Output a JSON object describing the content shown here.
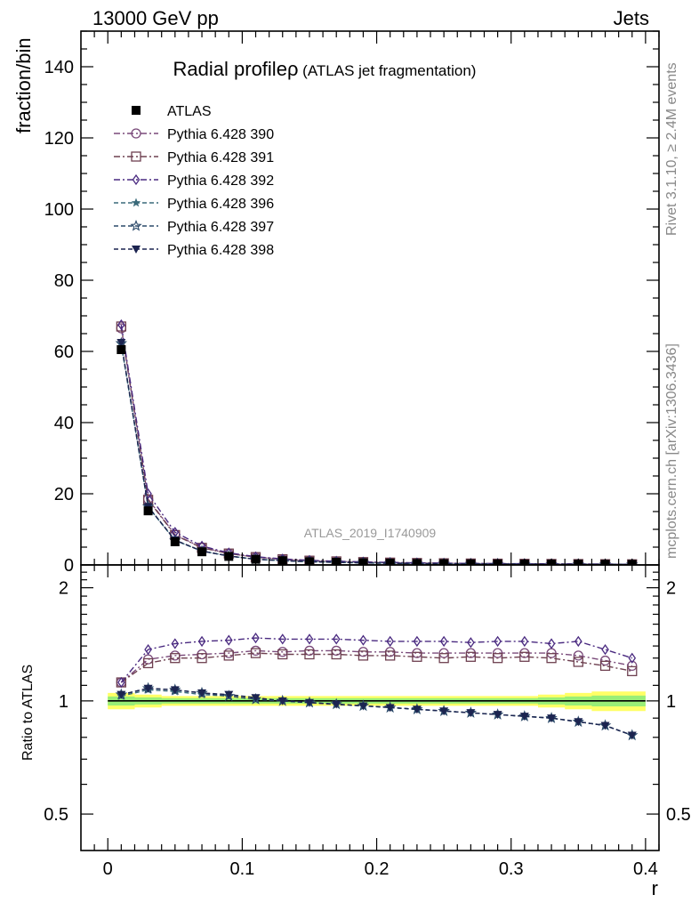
{
  "header": {
    "left": "13000 GeV pp",
    "right": "Jets"
  },
  "plot": {
    "title": "Radial profile",
    "title_symbol": "ρ",
    "title_suffix": " (ATLAS jet fragmentation)",
    "watermark": "ATLAS_2019_I1740909",
    "side_top": "Rivet 3.1.10, ≥ 2.4M events",
    "side_bottom": "mcplots.cern.ch [arXiv:1306.3436]"
  },
  "chart_data": [
    {
      "type": "line",
      "panel": "main",
      "ylabel": "fraction/bin",
      "xlabel": "",
      "xlim": [
        -0.02,
        0.41
      ],
      "ylim": [
        0,
        150
      ],
      "y_ticks": [
        0,
        20,
        40,
        60,
        80,
        100,
        120,
        140
      ],
      "x": [
        0.01,
        0.03,
        0.05,
        0.07,
        0.09,
        0.11,
        0.13,
        0.15,
        0.17,
        0.19,
        0.21,
        0.23,
        0.25,
        0.27,
        0.29,
        0.31,
        0.33,
        0.35,
        0.37,
        0.39
      ],
      "series": [
        {
          "name": "ATLAS",
          "marker": "square-filled",
          "color": "#000000",
          "line": "none",
          "values": [
            60.5,
            15.2,
            6.5,
            3.7,
            2.4,
            1.6,
            1.2,
            0.9,
            0.75,
            0.6,
            0.5,
            0.4,
            0.35,
            0.3,
            0.27,
            0.24,
            0.21,
            0.19,
            0.17,
            0.15
          ]
        },
        {
          "name": "Pythia 6.428 390",
          "marker": "circle-open",
          "color": "#7a4a7a",
          "line": "dashdot",
          "values": [
            66.5,
            18.5,
            8.5,
            4.9,
            3.2,
            2.2,
            1.6,
            1.2,
            1.0,
            0.8,
            0.66,
            0.55,
            0.47,
            0.4,
            0.36,
            0.32,
            0.28,
            0.25,
            0.22,
            0.19
          ]
        },
        {
          "name": "Pythia 6.428 391",
          "marker": "square-open",
          "color": "#6e4050",
          "line": "dashdot",
          "values": [
            67.0,
            18.3,
            8.4,
            4.8,
            3.2,
            2.2,
            1.6,
            1.2,
            1.0,
            0.8,
            0.66,
            0.55,
            0.47,
            0.4,
            0.36,
            0.32,
            0.28,
            0.25,
            0.21,
            0.18
          ]
        },
        {
          "name": "Pythia 6.428 392",
          "marker": "diamond-open",
          "color": "#4a2a80",
          "line": "dashdot",
          "values": [
            67.5,
            20.0,
            9.2,
            5.3,
            3.4,
            2.3,
            1.7,
            1.3,
            1.05,
            0.85,
            0.7,
            0.57,
            0.5,
            0.42,
            0.38,
            0.34,
            0.29,
            0.27,
            0.23,
            0.19
          ]
        },
        {
          "name": "Pythia 6.428 396",
          "marker": "star-filled",
          "color": "#3a6a7a",
          "line": "dashed",
          "values": [
            62.0,
            16.3,
            6.9,
            3.9,
            2.5,
            1.6,
            1.2,
            0.9,
            0.74,
            0.58,
            0.48,
            0.38,
            0.33,
            0.28,
            0.25,
            0.22,
            0.19,
            0.17,
            0.15,
            0.12
          ]
        },
        {
          "name": "Pythia 6.428 397",
          "marker": "star-open",
          "color": "#2c4a6a",
          "line": "dashed",
          "values": [
            62.3,
            16.4,
            6.9,
            3.9,
            2.5,
            1.6,
            1.2,
            0.9,
            0.74,
            0.58,
            0.48,
            0.38,
            0.33,
            0.28,
            0.25,
            0.22,
            0.19,
            0.17,
            0.15,
            0.12
          ]
        },
        {
          "name": "Pythia 6.428 398",
          "marker": "triangle-down-filled",
          "color": "#1c2450",
          "line": "dashed",
          "values": [
            62.5,
            16.4,
            7.0,
            3.9,
            2.5,
            1.6,
            1.2,
            0.9,
            0.74,
            0.58,
            0.48,
            0.38,
            0.33,
            0.28,
            0.25,
            0.22,
            0.19,
            0.17,
            0.15,
            0.12
          ]
        }
      ]
    },
    {
      "type": "line",
      "panel": "ratio",
      "ylabel": "Ratio to ATLAS",
      "xlabel": "r",
      "xlim": [
        -0.02,
        0.41
      ],
      "ylim": [
        0.4,
        2.3
      ],
      "y_scale": "log",
      "y_ticks": [
        0.5,
        1,
        2
      ],
      "x_ticks": [
        0,
        0.1,
        0.2,
        0.3,
        0.4
      ],
      "x": [
        0.01,
        0.03,
        0.05,
        0.07,
        0.09,
        0.11,
        0.13,
        0.15,
        0.17,
        0.19,
        0.21,
        0.23,
        0.25,
        0.27,
        0.29,
        0.31,
        0.33,
        0.35,
        0.37,
        0.39
      ],
      "band_halfwidth": [
        0.05,
        0.04,
        0.03,
        0.03,
        0.03,
        0.03,
        0.03,
        0.03,
        0.03,
        0.03,
        0.03,
        0.03,
        0.03,
        0.03,
        0.03,
        0.03,
        0.04,
        0.05,
        0.06,
        0.06
      ],
      "series": [
        {
          "name": "Pythia 6.428 390",
          "values": [
            1.12,
            1.29,
            1.32,
            1.33,
            1.34,
            1.36,
            1.35,
            1.36,
            1.36,
            1.35,
            1.35,
            1.34,
            1.34,
            1.34,
            1.34,
            1.34,
            1.34,
            1.32,
            1.28,
            1.24
          ]
        },
        {
          "name": "Pythia 6.428 391",
          "values": [
            1.12,
            1.26,
            1.3,
            1.3,
            1.32,
            1.34,
            1.33,
            1.33,
            1.33,
            1.32,
            1.32,
            1.31,
            1.3,
            1.31,
            1.3,
            1.31,
            1.3,
            1.27,
            1.24,
            1.2
          ]
        },
        {
          "name": "Pythia 6.428 392",
          "values": [
            1.12,
            1.37,
            1.42,
            1.44,
            1.45,
            1.47,
            1.46,
            1.46,
            1.46,
            1.45,
            1.44,
            1.44,
            1.44,
            1.43,
            1.44,
            1.44,
            1.42,
            1.44,
            1.37,
            1.3
          ]
        },
        {
          "name": "Pythia 6.428 396",
          "values": [
            1.03,
            1.07,
            1.06,
            1.04,
            1.03,
            1.01,
            1.0,
            0.99,
            0.98,
            0.97,
            0.96,
            0.95,
            0.94,
            0.93,
            0.92,
            0.91,
            0.9,
            0.88,
            0.86,
            0.81
          ]
        },
        {
          "name": "Pythia 6.428 397",
          "values": [
            1.04,
            1.08,
            1.07,
            1.05,
            1.03,
            1.01,
            1.0,
            0.99,
            0.98,
            0.97,
            0.96,
            0.95,
            0.94,
            0.93,
            0.92,
            0.91,
            0.9,
            0.88,
            0.86,
            0.81
          ]
        },
        {
          "name": "Pythia 6.428 398",
          "values": [
            1.04,
            1.08,
            1.07,
            1.05,
            1.04,
            1.02,
            1.0,
            0.99,
            0.98,
            0.97,
            0.96,
            0.95,
            0.94,
            0.93,
            0.92,
            0.91,
            0.9,
            0.88,
            0.86,
            0.81
          ]
        }
      ]
    }
  ]
}
